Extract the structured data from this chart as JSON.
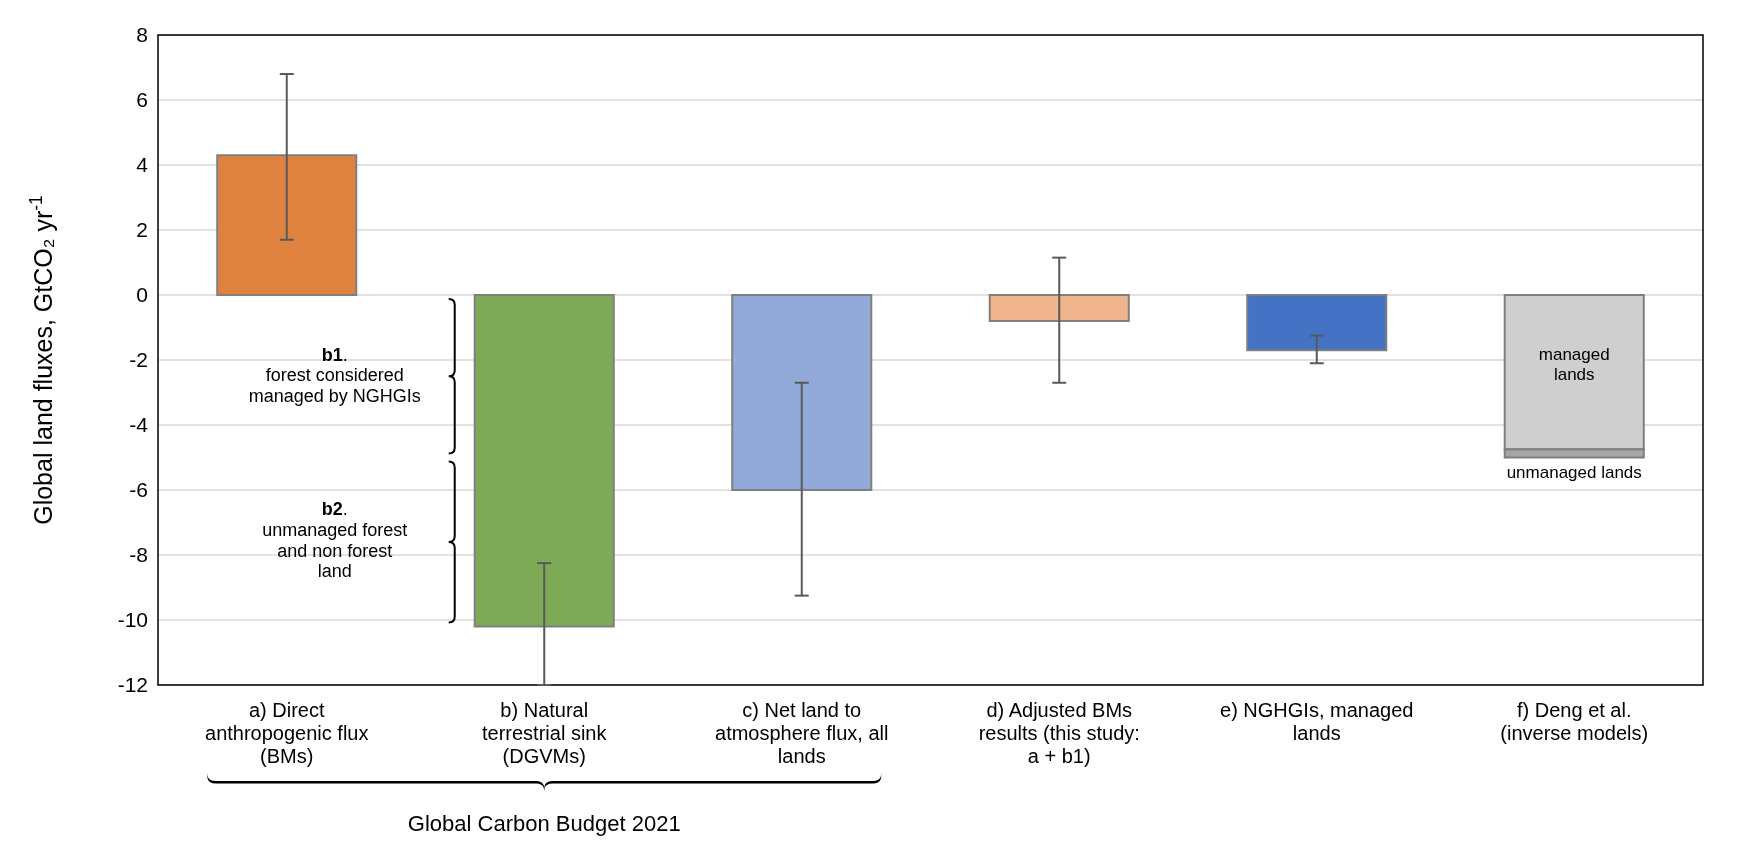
{
  "chart_data": {
    "type": "bar",
    "ylabel": "Global land fluxes, GtCO₂ yr$^{-1}$",
    "categories": [
      "a) Direct anthropogenic flux (BMs)",
      "b) Natural terrestrial sink (DGVMs)",
      "c) Net land to atmosphere flux, all lands",
      "d) Adjusted BMs results (this study: a + b1)",
      "e) NGHGIs, managed lands",
      "f) Deng et al. (inverse models)"
    ],
    "stacked": true,
    "series": [
      {
        "colors": [
          "#e0823f",
          "#7ea956",
          "#92aad8",
          "#f0b58c",
          "#4472c4",
          null
        ],
        "values": [
          4.3,
          -10.2,
          -6.0,
          -0.8,
          -1.7,
          null
        ],
        "errors": [
          [
            1.7,
            6.8
          ],
          [
            -12,
            -8.25
          ],
          [
            -9.25,
            -2.7
          ],
          [
            -2.7,
            1.15
          ],
          [
            -2.1,
            -1.25
          ],
          null
        ]
      },
      {
        "name": "managed lands",
        "color": "#d0cfcf",
        "values": [
          null,
          null,
          null,
          null,
          null,
          -4.75
        ]
      },
      {
        "name": "unmanaged lands",
        "color": "#a6a6a6",
        "values": [
          null,
          null,
          null,
          null,
          null,
          -0.25
        ]
      }
    ],
    "ylim": [
      -12,
      8
    ],
    "yticks": [
      -12,
      -10,
      -8,
      -6,
      -4,
      -2,
      0,
      2,
      4,
      6,
      8
    ],
    "grid": "y",
    "annotations": [
      "b1. forest considered managed by NGHGIs",
      "b2. unmanaged forest and non forest land",
      "Global Carbon Budget 2021"
    ]
  }
}
